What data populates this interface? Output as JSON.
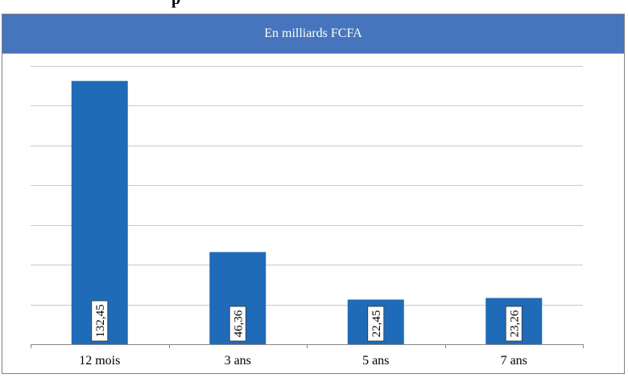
{
  "header": {
    "top_text": "p",
    "subtitle": "En milliards FCFA"
  },
  "colors": {
    "bar": "#1f6bb8",
    "header_band": "#4675bd",
    "grid": "#c9c9c9",
    "axis": "#888888",
    "frame": "#7f7f7f"
  },
  "chart_data": {
    "type": "bar",
    "title": "",
    "subtitle": "En milliards FCFA",
    "xlabel": "",
    "ylabel": "",
    "categories": [
      "12 mois",
      "3 ans",
      "5 ans",
      "7 ans"
    ],
    "series": [
      {
        "values": [
          132.45,
          46.36,
          22.45,
          23.26
        ],
        "labels": [
          "132,45",
          "46,36",
          "22,45",
          "23,26"
        ]
      }
    ],
    "ylim": [
      0,
      140
    ],
    "grid": true,
    "y_tick_labels_visible": false,
    "data_label_orientation": "vertical",
    "legend": "none"
  }
}
